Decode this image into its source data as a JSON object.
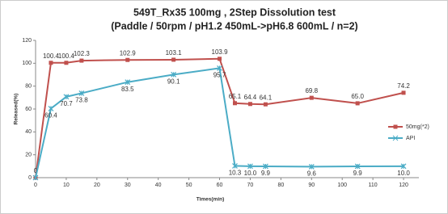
{
  "chart_data": {
    "type": "line",
    "title": "549T_Rx35 100mg , 2Step Dissolution test",
    "subtitle": "(Paddle / 50rpm / pH1.2 450mL->pH6.8 600mL / n=2)",
    "x_label": "Times(min)",
    "y_label": "Released(%)",
    "x": [
      0,
      5,
      10,
      15,
      30,
      45,
      60,
      65,
      70,
      75,
      90,
      105,
      120
    ],
    "series": [
      {
        "name": "50mg(*2)",
        "color": "#c0504d",
        "marker": "square",
        "values": [
          0,
          100.4,
          100.4,
          102.3,
          102.9,
          103.1,
          103.9,
          65.1,
          64.4,
          64.1,
          69.8,
          65.0,
          74.2
        ],
        "value_labels": [
          "0",
          "100.4",
          "100.4",
          "102.3",
          "102.9",
          "103.1",
          "103.9",
          "65.1",
          "64.4",
          "64.1",
          "69.8",
          "65.0",
          "74.2"
        ]
      },
      {
        "name": "API",
        "color": "#4bacc6",
        "marker": "x",
        "values": [
          0,
          60.4,
          70.7,
          73.8,
          83.5,
          90.1,
          95.7,
          10.3,
          10.0,
          9.9,
          9.6,
          9.9,
          10.0
        ],
        "value_labels": [
          null,
          "60.4",
          "70.7",
          "73.8",
          "83.5",
          "90.1",
          "95.7",
          "10.3",
          "10.0",
          "9.9",
          "9.6",
          "9.9",
          "10.0"
        ]
      }
    ],
    "xlim": [
      0,
      125
    ],
    "xticks": [
      0,
      10,
      20,
      30,
      40,
      50,
      60,
      70,
      80,
      90,
      100,
      110,
      120
    ],
    "ylim": [
      0,
      120
    ],
    "yticks": [
      0,
      20,
      40,
      60,
      80,
      100,
      120
    ],
    "grid": false,
    "legend": "right"
  }
}
